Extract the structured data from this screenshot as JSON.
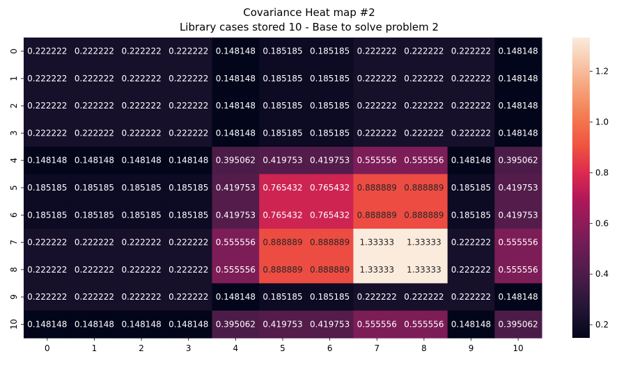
{
  "chart_data": {
    "type": "heatmap",
    "title": "Covariance Heat map #2",
    "subtitle": "Library cases stored 10 - Base to solve problem 2",
    "xlabel": "",
    "ylabel": "",
    "x_categories": [
      "0",
      "1",
      "2",
      "3",
      "4",
      "5",
      "6",
      "7",
      "8",
      "9",
      "10"
    ],
    "y_categories": [
      "0",
      "1",
      "2",
      "3",
      "4",
      "5",
      "6",
      "7",
      "8",
      "9",
      "10"
    ],
    "values": [
      [
        0.222222,
        0.222222,
        0.222222,
        0.222222,
        0.148148,
        0.185185,
        0.185185,
        0.222222,
        0.222222,
        0.222222,
        0.148148
      ],
      [
        0.222222,
        0.222222,
        0.222222,
        0.222222,
        0.148148,
        0.185185,
        0.185185,
        0.222222,
        0.222222,
        0.222222,
        0.148148
      ],
      [
        0.222222,
        0.222222,
        0.222222,
        0.222222,
        0.148148,
        0.185185,
        0.185185,
        0.222222,
        0.222222,
        0.222222,
        0.148148
      ],
      [
        0.222222,
        0.222222,
        0.222222,
        0.222222,
        0.148148,
        0.185185,
        0.185185,
        0.222222,
        0.222222,
        0.222222,
        0.148148
      ],
      [
        0.148148,
        0.148148,
        0.148148,
        0.148148,
        0.395062,
        0.419753,
        0.419753,
        0.555556,
        0.555556,
        0.148148,
        0.395062
      ],
      [
        0.185185,
        0.185185,
        0.185185,
        0.185185,
        0.419753,
        0.765432,
        0.765432,
        0.888889,
        0.888889,
        0.185185,
        0.419753
      ],
      [
        0.185185,
        0.185185,
        0.185185,
        0.185185,
        0.419753,
        0.765432,
        0.765432,
        0.888889,
        0.888889,
        0.185185,
        0.419753
      ],
      [
        0.222222,
        0.222222,
        0.222222,
        0.222222,
        0.555556,
        0.888889,
        0.888889,
        1.33333,
        1.33333,
        0.222222,
        0.555556
      ],
      [
        0.222222,
        0.222222,
        0.222222,
        0.222222,
        0.555556,
        0.888889,
        0.888889,
        1.33333,
        1.33333,
        0.222222,
        0.555556
      ],
      [
        0.222222,
        0.222222,
        0.222222,
        0.222222,
        0.148148,
        0.185185,
        0.185185,
        0.222222,
        0.222222,
        0.222222,
        0.148148
      ],
      [
        0.148148,
        0.148148,
        0.148148,
        0.148148,
        0.395062,
        0.419753,
        0.419753,
        0.555556,
        0.555556,
        0.148148,
        0.395062
      ]
    ],
    "value_labels": [
      [
        "0.222222",
        "0.222222",
        "0.222222",
        "0.222222",
        "0.148148",
        "0.185185",
        "0.185185",
        "0.222222",
        "0.222222",
        "0.222222",
        "0.148148"
      ],
      [
        "0.222222",
        "0.222222",
        "0.222222",
        "0.222222",
        "0.148148",
        "0.185185",
        "0.185185",
        "0.222222",
        "0.222222",
        "0.222222",
        "0.148148"
      ],
      [
        "0.222222",
        "0.222222",
        "0.222222",
        "0.222222",
        "0.148148",
        "0.185185",
        "0.185185",
        "0.222222",
        "0.222222",
        "0.222222",
        "0.148148"
      ],
      [
        "0.222222",
        "0.222222",
        "0.222222",
        "0.222222",
        "0.148148",
        "0.185185",
        "0.185185",
        "0.222222",
        "0.222222",
        "0.222222",
        "0.148148"
      ],
      [
        "0.148148",
        "0.148148",
        "0.148148",
        "0.148148",
        "0.395062",
        "0.419753",
        "0.419753",
        "0.555556",
        "0.555556",
        "0.148148",
        "0.395062"
      ],
      [
        "0.185185",
        "0.185185",
        "0.185185",
        "0.185185",
        "0.419753",
        "0.765432",
        "0.765432",
        "0.888889",
        "0.888889",
        "0.185185",
        "0.419753"
      ],
      [
        "0.185185",
        "0.185185",
        "0.185185",
        "0.185185",
        "0.419753",
        "0.765432",
        "0.765432",
        "0.888889",
        "0.888889",
        "0.185185",
        "0.419753"
      ],
      [
        "0.222222",
        "0.222222",
        "0.222222",
        "0.222222",
        "0.555556",
        "0.888889",
        "0.888889",
        "1.33333",
        "1.33333",
        "0.222222",
        "0.555556"
      ],
      [
        "0.222222",
        "0.222222",
        "0.222222",
        "0.222222",
        "0.555556",
        "0.888889",
        "0.888889",
        "1.33333",
        "1.33333",
        "0.222222",
        "0.555556"
      ],
      [
        "0.222222",
        "0.222222",
        "0.222222",
        "0.222222",
        "0.148148",
        "0.185185",
        "0.185185",
        "0.222222",
        "0.222222",
        "0.222222",
        "0.148148"
      ],
      [
        "0.148148",
        "0.148148",
        "0.148148",
        "0.148148",
        "0.395062",
        "0.419753",
        "0.419753",
        "0.555556",
        "0.555556",
        "0.148148",
        "0.395062"
      ]
    ],
    "colorbar": {
      "min": 0.148148,
      "max": 1.33333,
      "ticks": [
        0.2,
        0.4,
        0.6,
        0.8,
        1.0,
        1.2
      ],
      "tick_labels": [
        "0.2",
        "0.4",
        "0.6",
        "0.8",
        "1.0",
        "1.2"
      ],
      "colormap": "rocket"
    },
    "grid": false,
    "legend": "colorbar-right"
  }
}
